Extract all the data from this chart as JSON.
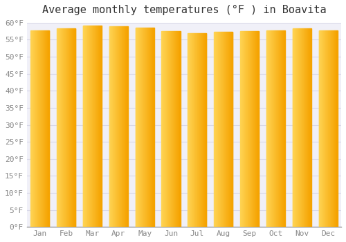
{
  "title": "Average monthly temperatures (°F ) in Boavita",
  "months": [
    "Jan",
    "Feb",
    "Mar",
    "Apr",
    "May",
    "Jun",
    "Jul",
    "Aug",
    "Sep",
    "Oct",
    "Nov",
    "Dec"
  ],
  "values": [
    57.7,
    58.3,
    59.2,
    59.0,
    58.5,
    57.6,
    57.0,
    57.4,
    57.6,
    57.8,
    58.3,
    57.7
  ],
  "bar_color_left": "#FFD555",
  "bar_color_right": "#F5A300",
  "ylim": [
    0,
    60
  ],
  "yticks": [
    0,
    5,
    10,
    15,
    20,
    25,
    30,
    35,
    40,
    45,
    50,
    55,
    60
  ],
  "background_color": "#ffffff",
  "plot_bg_color": "#f0f0f8",
  "grid_color": "#d8d8e8",
  "title_fontsize": 11,
  "tick_fontsize": 8
}
